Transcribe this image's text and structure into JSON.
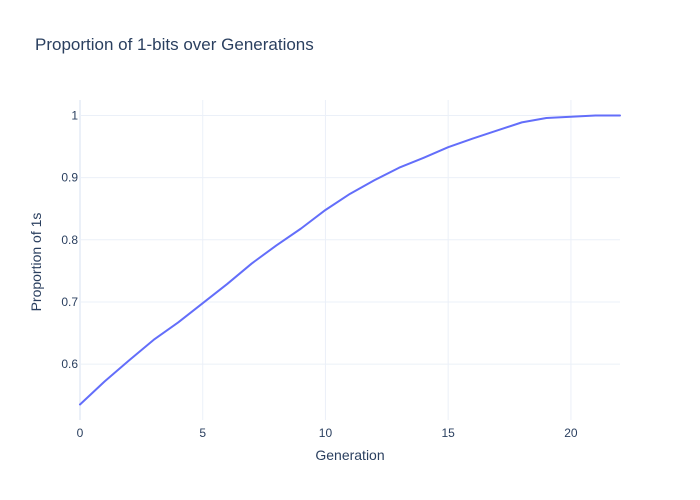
{
  "chart_data": {
    "type": "line",
    "title": "Proportion of 1-bits over Generations",
    "xlabel": "Generation",
    "ylabel": "Proportion of 1s",
    "xlim": [
      0,
      22
    ],
    "ylim": [
      0.51,
      1.025
    ],
    "x_ticks": [
      0,
      5,
      10,
      15,
      20
    ],
    "y_ticks": [
      0.6,
      0.7,
      0.8,
      0.9,
      1
    ],
    "x_tick_labels": [
      "0",
      "5",
      "10",
      "15",
      "20"
    ],
    "y_tick_labels": [
      "0.6",
      "0.7",
      "0.8",
      "0.9",
      "1"
    ],
    "grid": true,
    "series": [
      {
        "color": "#636efa",
        "x": [
          0,
          1,
          2,
          3,
          4,
          5,
          6,
          7,
          8,
          9,
          10,
          11,
          12,
          13,
          14,
          15,
          16,
          17,
          18,
          19,
          20,
          21,
          22
        ],
        "y": [
          0.535,
          0.572,
          0.606,
          0.639,
          0.667,
          0.698,
          0.729,
          0.762,
          0.791,
          0.818,
          0.848,
          0.874,
          0.896,
          0.916,
          0.932,
          0.949,
          0.963,
          0.976,
          0.989,
          0.996,
          0.998,
          1.0,
          1.0
        ]
      }
    ]
  }
}
